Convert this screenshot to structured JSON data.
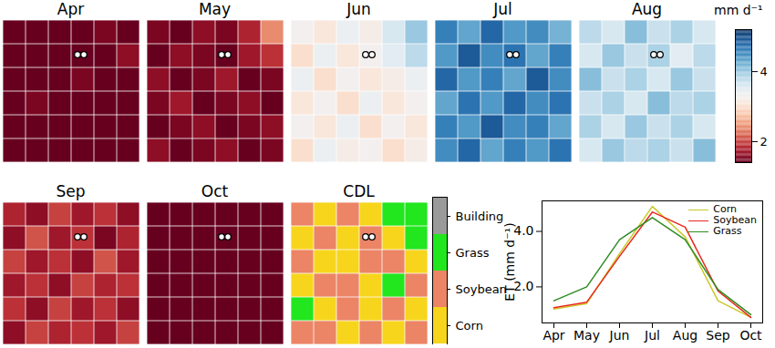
{
  "chart_data": [
    {
      "type": "heatmap",
      "tick_labels": false,
      "color": "rdbu",
      "colorbar": {
        "label": "mm d⁻¹",
        "range": [
          1.4,
          5.2
        ],
        "ticks": [
          2,
          4
        ]
      },
      "panels": [
        {
          "title": "Apr",
          "cells": [
            [
              1.3,
              1.4,
              1.2,
              1.3,
              1.5,
              1.4
            ],
            [
              1.2,
              1.3,
              1.4,
              1.2,
              1.3,
              1.6
            ],
            [
              1.4,
              1.2,
              1.3,
              1.5,
              1.2,
              1.3
            ],
            [
              1.3,
              1.5,
              1.2,
              1.3,
              1.4,
              1.2
            ],
            [
              1.2,
              1.3,
              1.4,
              1.2,
              1.3,
              1.4
            ],
            [
              1.4,
              1.2,
              1.3,
              1.4,
              1.2,
              1.3
            ]
          ]
        },
        {
          "title": "May",
          "cells": [
            [
              1.5,
              1.4,
              1.6,
              1.5,
              1.8,
              2.4
            ],
            [
              1.4,
              1.6,
              1.5,
              1.4,
              1.7,
              1.9
            ],
            [
              1.6,
              1.4,
              1.5,
              1.7,
              1.4,
              1.5
            ],
            [
              1.5,
              1.7,
              1.4,
              1.5,
              1.6,
              1.4
            ],
            [
              1.4,
              1.5,
              1.6,
              1.4,
              1.5,
              1.6
            ],
            [
              1.6,
              1.4,
              1.5,
              1.6,
              1.4,
              1.5
            ]
          ]
        },
        {
          "title": "Jun",
          "cells": [
            [
              3.3,
              3.1,
              3.4,
              3.2,
              3.6,
              4.0
            ],
            [
              3.0,
              3.4,
              3.1,
              3.3,
              3.5,
              3.8
            ],
            [
              3.4,
              3.0,
              3.3,
              3.1,
              3.2,
              3.4
            ],
            [
              3.1,
              3.3,
              3.0,
              3.4,
              3.1,
              3.3
            ],
            [
              3.3,
              3.1,
              3.4,
              3.0,
              3.3,
              3.1
            ],
            [
              3.0,
              3.4,
              3.2,
              3.3,
              3.0,
              3.2
            ]
          ]
        },
        {
          "title": "Jul",
          "cells": [
            [
              4.6,
              4.3,
              4.8,
              4.4,
              4.5,
              4.2
            ],
            [
              4.4,
              4.9,
              4.5,
              4.7,
              4.3,
              4.6
            ],
            [
              4.8,
              4.4,
              4.6,
              4.3,
              4.9,
              4.5
            ],
            [
              4.3,
              4.7,
              4.4,
              4.8,
              4.5,
              4.7
            ],
            [
              4.6,
              4.4,
              4.9,
              4.5,
              4.6,
              4.3
            ],
            [
              4.5,
              4.8,
              4.3,
              4.6,
              4.4,
              4.7
            ]
          ]
        },
        {
          "title": "Aug",
          "cells": [
            [
              3.8,
              3.6,
              4.1,
              3.7,
              3.9,
              3.6
            ],
            [
              3.6,
              4.0,
              3.7,
              3.9,
              3.5,
              3.8
            ],
            [
              4.1,
              3.7,
              3.9,
              3.6,
              4.0,
              3.7
            ],
            [
              3.7,
              3.9,
              3.6,
              4.1,
              3.8,
              3.9
            ],
            [
              3.9,
              3.6,
              4.0,
              3.7,
              3.9,
              3.6
            ],
            [
              3.6,
              4.0,
              3.8,
              3.9,
              3.7,
              4.1
            ]
          ]
        },
        {
          "title": "Sep",
          "cells": [
            [
              1.8,
              1.6,
              2.0,
              1.7,
              1.9,
              1.6
            ],
            [
              1.6,
              2.1,
              1.7,
              1.9,
              1.5,
              1.8
            ],
            [
              2.0,
              1.7,
              1.9,
              1.6,
              2.1,
              1.7
            ],
            [
              1.7,
              1.9,
              1.6,
              2.0,
              1.8,
              1.9
            ],
            [
              1.9,
              1.6,
              2.0,
              1.7,
              1.9,
              1.6
            ],
            [
              1.6,
              2.0,
              1.8,
              1.9,
              1.7,
              2.0
            ]
          ]
        },
        {
          "title": "Oct",
          "cells": [
            [
              0.9,
              1.0,
              0.9,
              1.0,
              0.9,
              1.0
            ],
            [
              1.0,
              0.9,
              1.0,
              0.9,
              1.0,
              0.9
            ],
            [
              0.9,
              1.0,
              0.9,
              1.0,
              0.9,
              1.0
            ],
            [
              1.0,
              0.9,
              1.0,
              0.9,
              1.0,
              0.9
            ],
            [
              0.9,
              1.0,
              0.9,
              1.0,
              0.9,
              1.0
            ],
            [
              1.0,
              0.9,
              1.0,
              0.9,
              1.0,
              0.9
            ]
          ]
        }
      ]
    },
    {
      "type": "categorical_map",
      "title": "CDL",
      "tick_labels": false,
      "classes": [
        {
          "name": "Building",
          "color": "#9a9a9a"
        },
        {
          "name": "Grass",
          "color": "#22e61e"
        },
        {
          "name": "Soybean",
          "color": "#ec8466"
        },
        {
          "name": "Corn",
          "color": "#f7d51c"
        }
      ],
      "cells": [
        [
          "Soybean",
          "Corn",
          "Soybean",
          "Corn",
          "Grass",
          "Grass"
        ],
        [
          "Corn",
          "Soybean",
          "Corn",
          "Soybean",
          "Corn",
          "Grass"
        ],
        [
          "Soybean",
          "Corn",
          "Corn",
          "Soybean",
          "Soybean",
          "Corn"
        ],
        [
          "Corn",
          "Soybean",
          "Soybean",
          "Corn",
          "Grass",
          "Soybean"
        ],
        [
          "Grass",
          "Corn",
          "Soybean",
          "Corn",
          "Soybean",
          "Corn"
        ],
        [
          "Soybean",
          "Soybean",
          "Corn",
          "Soybean",
          "Corn",
          "Soybean"
        ]
      ]
    },
    {
      "type": "line",
      "ylabel": "ET (mm d⁻¹)",
      "categories": [
        "Apr",
        "May",
        "Jun",
        "Jul",
        "Aug",
        "Sep",
        "Oct"
      ],
      "ylim": [
        0.7,
        5.1
      ],
      "yticks": [
        2,
        4
      ],
      "legend": "upper right",
      "series": [
        {
          "name": "Corn",
          "color": "#c8c82a",
          "values": [
            1.2,
            1.4,
            3.2,
            4.9,
            3.8,
            1.5,
            0.9
          ]
        },
        {
          "name": "Soybean",
          "color": "#e8291c",
          "values": [
            1.25,
            1.45,
            3.1,
            4.7,
            4.15,
            1.85,
            0.9
          ]
        },
        {
          "name": "Grass",
          "color": "#2e8b22",
          "values": [
            1.5,
            2.0,
            3.7,
            4.5,
            3.7,
            1.9,
            1.0
          ]
        }
      ]
    }
  ]
}
